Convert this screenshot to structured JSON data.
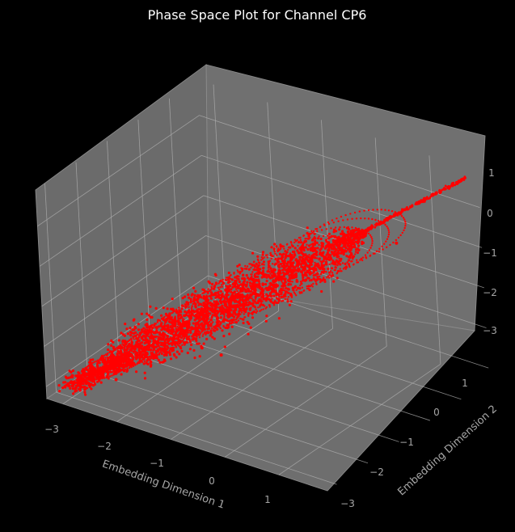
{
  "chart_data": {
    "type": "scatter",
    "projection": "3d",
    "title": "Phase Space Plot for Channel CP6",
    "xlabel": "Embedding Dimension 1",
    "ylabel": "Embedding Dimension 2",
    "zlabel": "",
    "xlim": [
      -3.3,
      1.9
    ],
    "ylim": [
      -3.3,
      1.9
    ],
    "zlim": [
      -3.3,
      1.9
    ],
    "x_ticks": [
      "−3",
      "−2",
      "−1",
      "0",
      "1"
    ],
    "y_ticks": [
      "−3",
      "−2",
      "−1",
      "0",
      "1"
    ],
    "z_ticks": [
      "−3",
      "−2",
      "−1",
      "0",
      "1"
    ],
    "marker_color": "#ff0000",
    "background": "#000000",
    "pane_color": "#707070",
    "grid": true,
    "series": [
      {
        "description_points": "dense phase-space trajectory approximately along the diagonal x = y = z",
        "points": [
          [
            -2.9,
            -2.9,
            -2.9
          ],
          [
            -2.6,
            -2.6,
            -2.6
          ],
          [
            -2.3,
            -2.3,
            -2.3
          ],
          [
            -2.0,
            -2.0,
            -2.0
          ],
          [
            -1.7,
            -1.7,
            -1.7
          ],
          [
            -1.4,
            -1.4,
            -1.4
          ],
          [
            -1.1,
            -1.1,
            -1.1
          ],
          [
            -0.8,
            -0.8,
            -0.8
          ],
          [
            -0.5,
            -0.5,
            -0.5
          ],
          [
            -0.2,
            -0.2,
            -0.2
          ],
          [
            0.1,
            0.1,
            0.1
          ],
          [
            0.3,
            0.3,
            0.3
          ],
          [
            0.6,
            0.6,
            0.6
          ],
          [
            0.9,
            0.9,
            0.9
          ],
          [
            1.2,
            1.2,
            1.2
          ],
          [
            1.5,
            1.5,
            1.5
          ],
          [
            1.7,
            1.7,
            1.7
          ]
        ]
      }
    ]
  }
}
